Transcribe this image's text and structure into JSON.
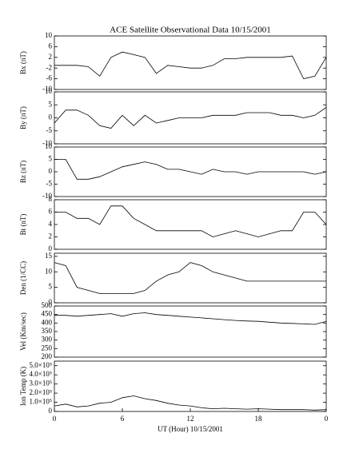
{
  "chart_data": [
    {
      "type": "line",
      "title": "ACE Satellite Observational Data   10/15/2001",
      "ylabel": "Bx (nT)",
      "color": "#000000",
      "x": [
        0,
        1,
        2,
        3,
        4,
        5,
        6,
        7,
        8,
        9,
        10,
        11,
        12,
        13,
        14,
        15,
        16,
        17,
        18,
        19,
        20,
        21,
        22,
        23,
        24
      ],
      "values": [
        -1,
        -1,
        -1,
        -1.5,
        -5,
        2,
        4,
        3,
        2,
        -4,
        -1,
        -1.5,
        -2,
        -2,
        -1,
        1.5,
        1.5,
        2,
        2,
        2,
        2,
        2.5,
        -6,
        -5,
        2
      ],
      "xlim": [
        0,
        24
      ],
      "ylim": [
        -10,
        10
      ],
      "yticks": [
        -10,
        -6,
        -2,
        2,
        6,
        10
      ]
    },
    {
      "type": "line",
      "ylabel": "By (nT)",
      "color": "#000000",
      "x": [
        0,
        1,
        2,
        3,
        4,
        5,
        6,
        7,
        8,
        9,
        10,
        11,
        12,
        13,
        14,
        15,
        16,
        17,
        18,
        19,
        20,
        21,
        22,
        23,
        24
      ],
      "values": [
        -2,
        3,
        3,
        1,
        -3,
        -4,
        1,
        -3,
        1,
        -2,
        -1,
        0,
        0,
        0,
        1,
        1,
        1,
        2,
        2,
        2,
        1,
        1,
        0,
        1,
        4
      ],
      "xlim": [
        0,
        24
      ],
      "ylim": [
        -10,
        10
      ],
      "yticks": [
        -10,
        -5,
        0,
        5,
        10
      ]
    },
    {
      "type": "line",
      "ylabel": "Bz (nT)",
      "color": "#000000",
      "x": [
        0,
        1,
        2,
        3,
        4,
        5,
        6,
        7,
        8,
        9,
        10,
        11,
        12,
        13,
        14,
        15,
        16,
        17,
        18,
        19,
        20,
        21,
        22,
        23,
        24
      ],
      "values": [
        5,
        5,
        -3,
        -3,
        -2,
        0,
        2,
        3,
        4,
        3,
        1,
        1,
        0,
        -1,
        1,
        0,
        0,
        -1,
        0,
        0,
        0,
        0,
        0,
        -1,
        0
      ],
      "xlim": [
        0,
        24
      ],
      "ylim": [
        -10,
        10
      ],
      "yticks": [
        -10,
        -5,
        0,
        5,
        10
      ]
    },
    {
      "type": "line",
      "ylabel": "Bt (nT)",
      "color": "#000000",
      "x": [
        0,
        1,
        2,
        3,
        4,
        5,
        6,
        7,
        8,
        9,
        10,
        11,
        12,
        13,
        14,
        15,
        16,
        17,
        18,
        19,
        20,
        21,
        22,
        23,
        24
      ],
      "values": [
        6,
        6,
        5,
        5,
        4,
        7,
        7,
        5,
        4,
        3,
        3,
        3,
        3,
        3,
        2,
        2.5,
        3,
        2.5,
        2,
        2.5,
        3,
        3,
        6,
        6,
        4
      ],
      "xlim": [
        0,
        24
      ],
      "ylim": [
        0,
        8
      ],
      "yticks": [
        0,
        2,
        4,
        6,
        8
      ]
    },
    {
      "type": "line",
      "ylabel": "Den (1/CC)",
      "color": "#000000",
      "x": [
        0,
        1,
        2,
        3,
        4,
        5,
        6,
        7,
        8,
        9,
        10,
        11,
        12,
        13,
        14,
        15,
        16,
        17,
        18,
        19,
        20,
        21,
        22,
        23,
        24
      ],
      "values": [
        13,
        12,
        5,
        4,
        3,
        3,
        3,
        3,
        4,
        7,
        9,
        10,
        13,
        12,
        10,
        9,
        8,
        7,
        7,
        7,
        7,
        7,
        7,
        7,
        7
      ],
      "xlim": [
        0,
        24
      ],
      "ylim": [
        0,
        16
      ],
      "yticks": [
        0,
        5,
        10,
        15
      ]
    },
    {
      "type": "line",
      "ylabel": "Vel (Km/sec)",
      "color": "#000000",
      "x": [
        0,
        1,
        2,
        3,
        4,
        5,
        6,
        7,
        8,
        9,
        10,
        11,
        12,
        13,
        14,
        15,
        16,
        17,
        18,
        19,
        20,
        21,
        22,
        23,
        24
      ],
      "values": [
        445,
        445,
        440,
        445,
        450,
        455,
        440,
        455,
        460,
        450,
        445,
        440,
        435,
        430,
        425,
        420,
        415,
        412,
        410,
        405,
        400,
        398,
        395,
        392,
        410
      ],
      "xlim": [
        0,
        24
      ],
      "ylim": [
        200,
        500
      ],
      "yticks": [
        200,
        250,
        300,
        350,
        400,
        450,
        500
      ]
    },
    {
      "type": "line",
      "ylabel": "Ion Temp (K)",
      "xlabel": "UT (Hour)  10/15/2001",
      "color": "#000000",
      "x": [
        0,
        1,
        2,
        3,
        4,
        5,
        6,
        7,
        8,
        9,
        10,
        11,
        12,
        13,
        14,
        15,
        16,
        17,
        18,
        19,
        20,
        21,
        22,
        23,
        24
      ],
      "values": [
        60000,
        80000,
        50000,
        60000,
        90000,
        100000,
        150000,
        170000,
        140000,
        120000,
        90000,
        70000,
        60000,
        40000,
        30000,
        35000,
        30000,
        25000,
        30000,
        25000,
        20000,
        20000,
        20000,
        15000,
        20000
      ],
      "xlim": [
        0,
        24
      ],
      "ylim": [
        0,
        550000
      ],
      "yticks": [
        0,
        {
          "value": 100000,
          "label": "1.0×10⁵"
        },
        {
          "value": 200000,
          "label": "2.0×10⁵"
        },
        {
          "value": 300000,
          "label": "3.0×10⁵"
        },
        {
          "value": 400000,
          "label": "4.0×10⁵"
        },
        {
          "value": 500000,
          "label": "5.0×10⁵"
        }
      ],
      "xticks": [
        0,
        6,
        12,
        18,
        {
          "value": 24,
          "label": "0"
        }
      ]
    }
  ]
}
